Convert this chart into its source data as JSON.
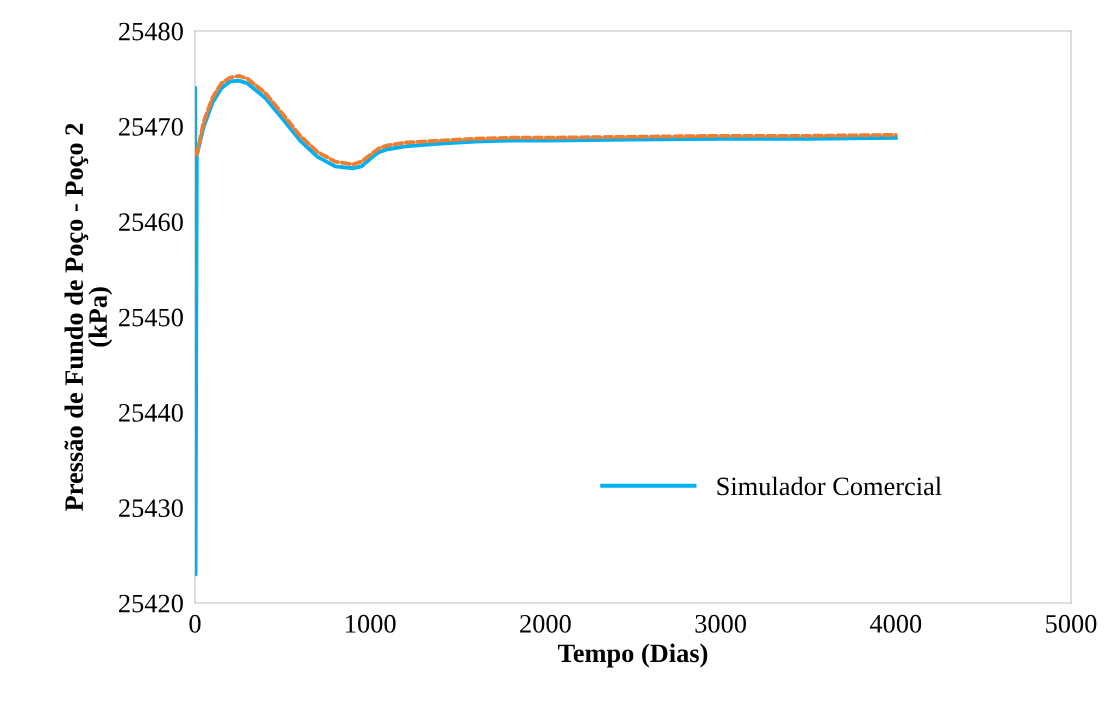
{
  "chart_data": {
    "type": "line",
    "xlabel": "Tempo (Dias)",
    "ylabel": "Pressão de Fundo de Poço - Poço 2\n(kPa)",
    "xlim": [
      0,
      5000
    ],
    "ylim": [
      25420,
      25480
    ],
    "xticks": [
      0,
      1000,
      2000,
      3000,
      4000,
      5000
    ],
    "yticks": [
      25420,
      25430,
      25440,
      25450,
      25460,
      25470,
      25480
    ],
    "grid": false,
    "legend": "right",
    "marker": "none",
    "series": [
      {
        "color": "#ed7d31",
        "line_style": "dashed",
        "x": [
          10,
          50,
          100,
          150,
          200,
          250,
          300,
          400,
          500,
          600,
          700,
          800,
          900,
          950,
          1000,
          1050,
          1100,
          1200,
          1400,
          1600,
          1800,
          2000,
          2500,
          3000,
          3500,
          4000
        ],
        "values": [
          25467,
          25470.5,
          25473,
          25474.5,
          25475.1,
          25475.3,
          25475,
          25473.5,
          25471.3,
          25469,
          25467.3,
          25466.3,
          25466,
          25466.3,
          25467,
          25467.7,
          25468,
          25468.3,
          25468.5,
          25468.7,
          25468.8,
          25468.8,
          25468.9,
          25469,
          25469,
          25469.1
        ]
      },
      {
        "name": "Simulador Comercial",
        "color": "#00b0f0",
        "line_style": "solid",
        "x": [
          0,
          3,
          10,
          50,
          100,
          150,
          200,
          250,
          300,
          400,
          500,
          600,
          700,
          800,
          900,
          950,
          1000,
          1050,
          1100,
          1200,
          1400,
          1600,
          1800,
          2000,
          2500,
          3000,
          3500,
          4000
        ],
        "values": [
          25474,
          25423,
          25467,
          25470,
          25472.5,
          25474,
          25474.7,
          25474.8,
          25474.5,
          25473,
          25470.8,
          25468.5,
          25466.8,
          25465.8,
          25465.6,
          25465.8,
          25466.6,
          25467.3,
          25467.6,
          25467.9,
          25468.2,
          25468.4,
          25468.5,
          25468.5,
          25468.6,
          25468.7,
          25468.7,
          25468.8
        ]
      }
    ]
  }
}
